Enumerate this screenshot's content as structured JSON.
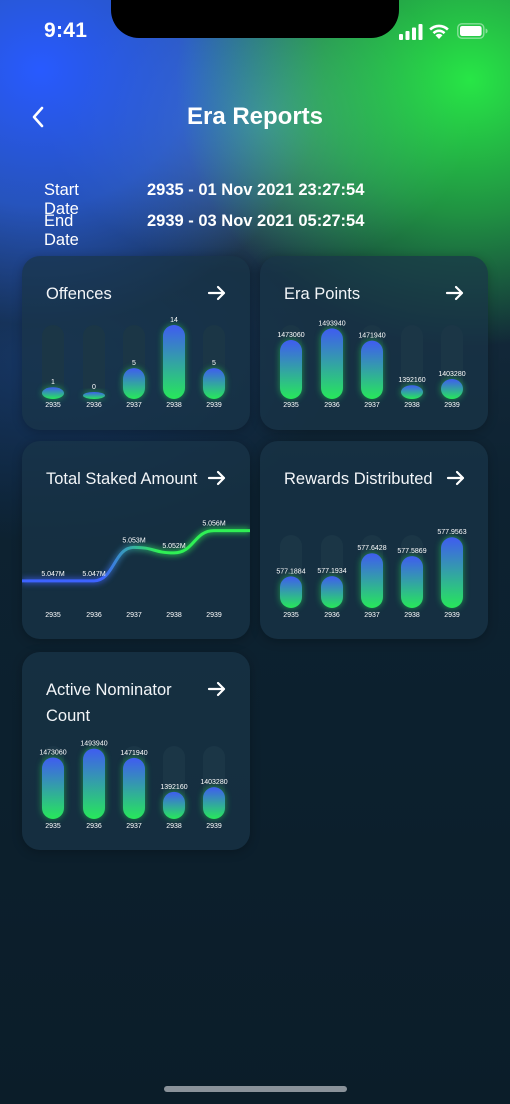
{
  "status": {
    "time": "9:41"
  },
  "header": {
    "title": "Era Reports"
  },
  "dates": {
    "start_label": "Start Date",
    "start_value": "2935 - 01 Nov 2021 23:27:54",
    "end_label": "End Date",
    "end_value": "2939 - 03 Nov 2021 05:27:54"
  },
  "cards": {
    "offences": {
      "title": "Offences"
    },
    "era_points": {
      "title": "Era Points"
    },
    "total_staked": {
      "title": "Total Staked Amount"
    },
    "rewards": {
      "title": "Rewards Distributed"
    },
    "nominators": {
      "title": "Active Nominator Count"
    }
  },
  "chart_data": [
    {
      "id": "offences",
      "type": "bar",
      "categories": [
        "2935",
        "2936",
        "2937",
        "2938",
        "2939"
      ],
      "values": [
        1,
        0,
        5,
        14,
        5
      ],
      "labels": [
        "1",
        "0",
        "5",
        "14",
        "5"
      ],
      "ylim": [
        0,
        14
      ]
    },
    {
      "id": "era_points",
      "type": "bar",
      "categories": [
        "2935",
        "2936",
        "2937",
        "2938",
        "2939"
      ],
      "values": [
        1473060,
        1493940,
        1471940,
        1392160,
        1403280
      ],
      "labels": [
        "1473060",
        "1493940",
        "1471940",
        "1392160",
        "1403280"
      ],
      "ylim": [
        1380000,
        1500000
      ]
    },
    {
      "id": "total_staked",
      "type": "line",
      "categories": [
        "2935",
        "2936",
        "2937",
        "2938",
        "2939"
      ],
      "values": [
        5.047,
        5.047,
        5.053,
        5.052,
        5.056
      ],
      "labels": [
        "5.047M",
        "5.047M",
        "5.053M",
        "5.052M",
        "5.056M"
      ],
      "ylim": [
        5.045,
        5.057
      ]
    },
    {
      "id": "rewards",
      "type": "bar",
      "categories": [
        "2935",
        "2936",
        "2937",
        "2938",
        "2939"
      ],
      "values": [
        577.1884,
        577.1934,
        577.6428,
        577.5869,
        577.9563
      ],
      "labels": [
        "577.1884",
        "577.1934",
        "577.6428",
        "577.5869",
        "577.9563"
      ],
      "ylim": [
        577.0,
        578.0
      ]
    },
    {
      "id": "nominators",
      "type": "bar",
      "categories": [
        "2935",
        "2936",
        "2937",
        "2938",
        "2939"
      ],
      "values": [
        1473060,
        1493940,
        1471940,
        1392160,
        1403280
      ],
      "labels": [
        "1473060",
        "1493940",
        "1471940",
        "1392160",
        "1403280"
      ],
      "ylim": [
        1380000,
        1500000
      ]
    }
  ],
  "colors": {
    "bar_top": "#3f5cf0",
    "bar_bottom": "#27e85a",
    "line_start": "#3d63ff",
    "line_end": "#2ff055",
    "track": "#1b3646"
  },
  "icons": {
    "back": "chevron-left-icon",
    "card_arrow": "arrow-right-icon"
  }
}
